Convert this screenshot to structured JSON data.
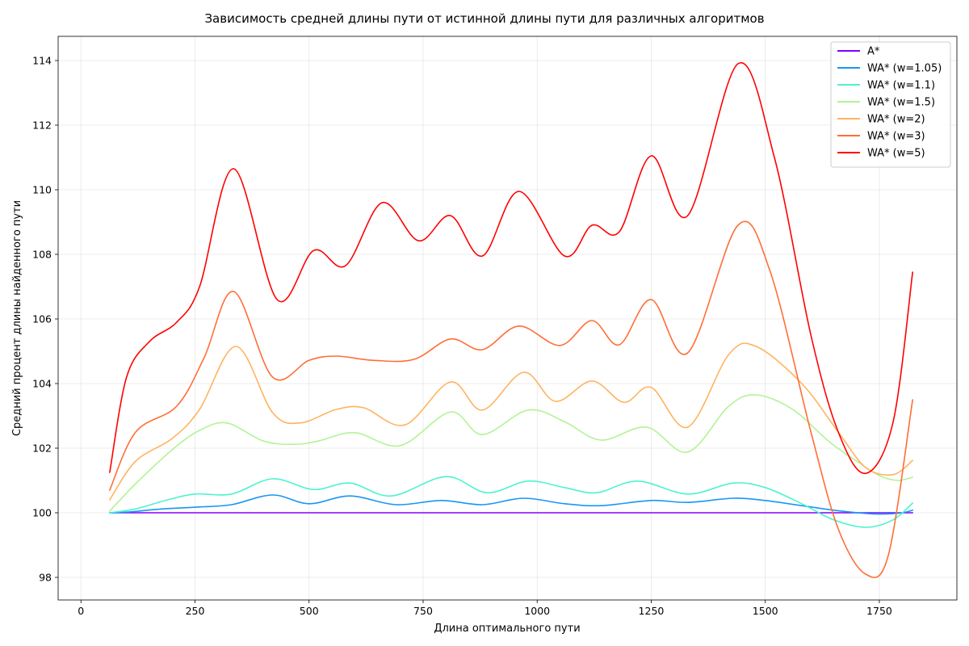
{
  "chart_data": {
    "type": "line",
    "title": "Зависимость средней длины пути от истинной длины пути для различных алгоритмов",
    "xlabel": "Длина оптимального пути",
    "ylabel": "Средний процент длины найденного пути",
    "xlim": [
      -50,
      1920
    ],
    "ylim": [
      97.3,
      114.75
    ],
    "xticks": [
      0,
      250,
      500,
      750,
      1000,
      1250,
      1500,
      1750
    ],
    "yticks": [
      98,
      100,
      102,
      104,
      106,
      108,
      110,
      112,
      114
    ],
    "grid": true,
    "legend_position": "top-right",
    "series": [
      {
        "name": "A*",
        "color": "#8000ff",
        "x": [
          63,
          500,
          1000,
          1500,
          1823
        ],
        "y": [
          100,
          100,
          100,
          100,
          100
        ]
      },
      {
        "name": "WA* (w=1.05)",
        "color": "#1996f3",
        "x": [
          63,
          100,
          180,
          260,
          330,
          420,
          500,
          590,
          690,
          790,
          880,
          970,
          1060,
          1140,
          1250,
          1330,
          1430,
          1500,
          1580,
          1650,
          1720,
          1760,
          1800,
          1823
        ],
        "y": [
          100,
          100.02,
          100.12,
          100.18,
          100.25,
          100.55,
          100.28,
          100.52,
          100.25,
          100.38,
          100.25,
          100.45,
          100.28,
          100.22,
          100.38,
          100.32,
          100.45,
          100.38,
          100.22,
          100.08,
          99.98,
          99.96,
          100.0,
          100.08
        ]
      },
      {
        "name": "WA* (w=1.1)",
        "color": "#4df3ce",
        "x": [
          63,
          120,
          190,
          250,
          330,
          420,
          510,
          590,
          680,
          800,
          890,
          980,
          1060,
          1130,
          1220,
          1330,
          1430,
          1500,
          1580,
          1650,
          1720,
          1780,
          1823
        ],
        "y": [
          100,
          100.12,
          100.4,
          100.58,
          100.58,
          101.05,
          100.72,
          100.92,
          100.52,
          101.12,
          100.62,
          100.98,
          100.78,
          100.62,
          100.98,
          100.58,
          100.92,
          100.78,
          100.28,
          99.78,
          99.55,
          99.78,
          100.3
        ]
      },
      {
        "name": "WA* (w=1.5)",
        "color": "#b2f396",
        "x": [
          63,
          120,
          200,
          260,
          320,
          400,
          470,
          520,
          600,
          700,
          810,
          880,
          980,
          1060,
          1140,
          1240,
          1330,
          1420,
          1480,
          1560,
          1640,
          1700,
          1750,
          1790,
          1823
        ],
        "y": [
          100.05,
          100.9,
          101.95,
          102.55,
          102.78,
          102.22,
          102.12,
          102.22,
          102.48,
          102.08,
          103.12,
          102.42,
          103.18,
          102.82,
          102.25,
          102.65,
          101.88,
          103.3,
          103.65,
          103.2,
          102.2,
          101.6,
          101.15,
          101.0,
          101.1
        ]
      },
      {
        "name": "WA* (w=2)",
        "color": "#ffb360",
        "x": [
          63,
          120,
          200,
          260,
          340,
          420,
          480,
          560,
          620,
          710,
          810,
          880,
          970,
          1040,
          1120,
          1190,
          1250,
          1330,
          1420,
          1480,
          1580,
          1660,
          1720,
          1780,
          1823
        ],
        "y": [
          100.4,
          101.6,
          102.3,
          103.2,
          105.15,
          103.1,
          102.78,
          103.2,
          103.25,
          102.72,
          104.05,
          103.18,
          104.35,
          103.45,
          104.08,
          103.42,
          103.88,
          102.65,
          104.9,
          105.15,
          104.0,
          102.5,
          101.4,
          101.18,
          101.62
        ]
      },
      {
        "name": "WA* (w=3)",
        "color": "#ff6e36",
        "x": [
          63,
          120,
          210,
          270,
          335,
          420,
          500,
          560,
          640,
          730,
          810,
          880,
          960,
          1050,
          1120,
          1180,
          1250,
          1330,
          1440,
          1510,
          1600,
          1660,
          1720,
          1770,
          1823
        ],
        "y": [
          100.7,
          102.5,
          103.3,
          104.8,
          106.85,
          104.2,
          104.72,
          104.85,
          104.72,
          104.75,
          105.38,
          105.05,
          105.78,
          105.18,
          105.95,
          105.2,
          106.6,
          104.95,
          108.9,
          107.5,
          102.5,
          99.5,
          98.1,
          98.7,
          103.5
        ]
      },
      {
        "name": "WA* (w=5)",
        "color": "#ff0000",
        "x": [
          63,
          100,
          150,
          210,
          260,
          335,
          430,
          510,
          580,
          660,
          740,
          810,
          880,
          960,
          1060,
          1120,
          1180,
          1250,
          1330,
          1440,
          1520,
          1600,
          1660,
          1720,
          1780,
          1823
        ],
        "y": [
          101.25,
          104.2,
          105.3,
          105.9,
          107.0,
          110.65,
          106.6,
          108.12,
          107.65,
          109.6,
          108.42,
          109.2,
          107.95,
          109.95,
          107.95,
          108.9,
          108.7,
          111.05,
          109.2,
          113.9,
          111.0,
          105.5,
          102.5,
          101.22,
          102.8,
          107.45
        ]
      }
    ]
  }
}
